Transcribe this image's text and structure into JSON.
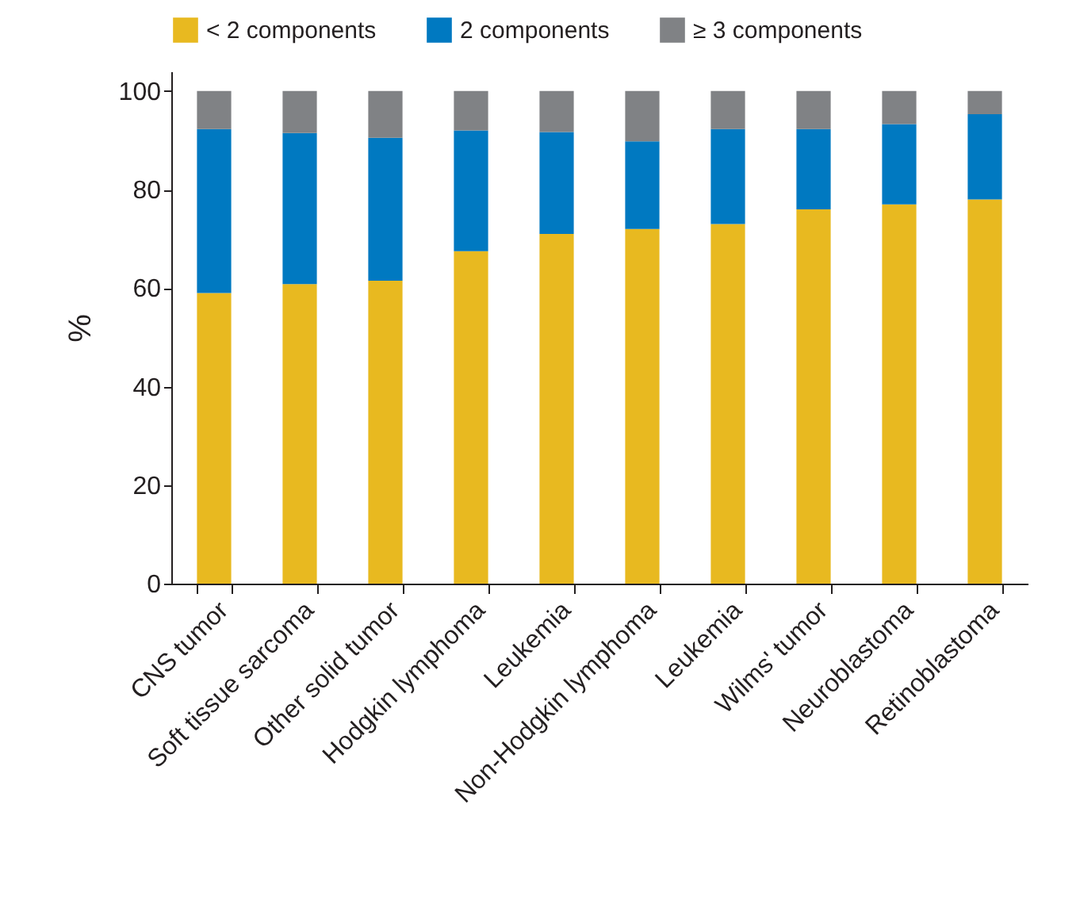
{
  "chart_data": {
    "type": "bar",
    "stacked": true,
    "ylabel": "%",
    "ylim": [
      0,
      104
    ],
    "yticks": [
      0,
      20,
      40,
      60,
      80,
      100
    ],
    "legend": "top",
    "grid": false,
    "categories": [
      "CNS tumor",
      "Soft tissue sarcoma",
      "Other solid tumor",
      "Hodgkin lymphoma",
      "Leukemia",
      "Non-Hodgkin lymphoma",
      "Leukemia",
      "Wilms' tumor",
      "Neuroblastoma",
      "Retinoblastoma"
    ],
    "series": [
      {
        "name": "< 2 components",
        "color": "#e8b920",
        "values": [
          59,
          60.8,
          61.5,
          67.5,
          71,
          72,
          73,
          76,
          77,
          78
        ]
      },
      {
        "name": "2 components",
        "color": "#0079c1",
        "values": [
          33.3,
          30.7,
          29,
          24.5,
          20.7,
          17.8,
          19.3,
          16.3,
          16.3,
          17.3
        ]
      },
      {
        "name": "≥ 3 components",
        "color": "#808285",
        "values": [
          7.7,
          8.5,
          9.5,
          8,
          8.3,
          10.2,
          7.7,
          7.7,
          6.7,
          4.7
        ]
      }
    ]
  }
}
